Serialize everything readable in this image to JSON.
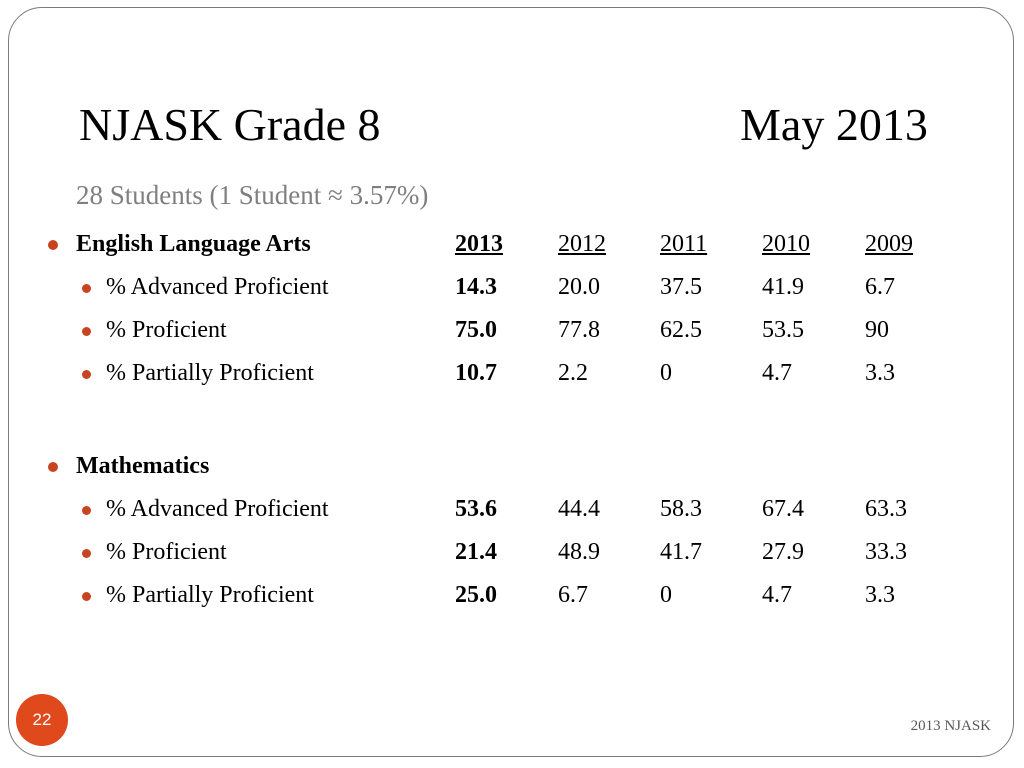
{
  "slide": {
    "title_left": "NJASK Grade 8",
    "title_right": "May 2013",
    "subtitle": "28 Students (1 Student ≈ 3.57%)",
    "page_number": "22",
    "footer": "2013 NJASK",
    "bullet_color": "#c8441f",
    "badge_color": "#e0491c"
  },
  "ela": {
    "heading": "English Language Arts",
    "years": [
      "2013",
      "2012",
      "2011",
      "2010",
      "2009"
    ],
    "rows": [
      {
        "label": "% Advanced Proficient",
        "values": [
          "14.3",
          "20.0",
          "37.5",
          "41.9",
          "6.7"
        ]
      },
      {
        "label": "% Proficient",
        "values": [
          "75.0",
          "77.8",
          "62.5",
          "53.5",
          "90"
        ]
      },
      {
        "label": "% Partially Proficient",
        "values": [
          "10.7",
          "2.2",
          "0",
          "4.7",
          "3.3"
        ]
      }
    ]
  },
  "math": {
    "heading": "Mathematics",
    "rows": [
      {
        "label": "% Advanced Proficient",
        "values": [
          "53.6",
          "44.4",
          "58.3",
          "67.4",
          "63.3"
        ]
      },
      {
        "label": "% Proficient",
        "values": [
          "21.4",
          "48.9",
          "41.7",
          "27.9",
          "33.3"
        ]
      },
      {
        "label": "% Partially Proficient",
        "values": [
          "25.0",
          "6.7",
          "0",
          "4.7",
          "3.3"
        ]
      }
    ]
  }
}
